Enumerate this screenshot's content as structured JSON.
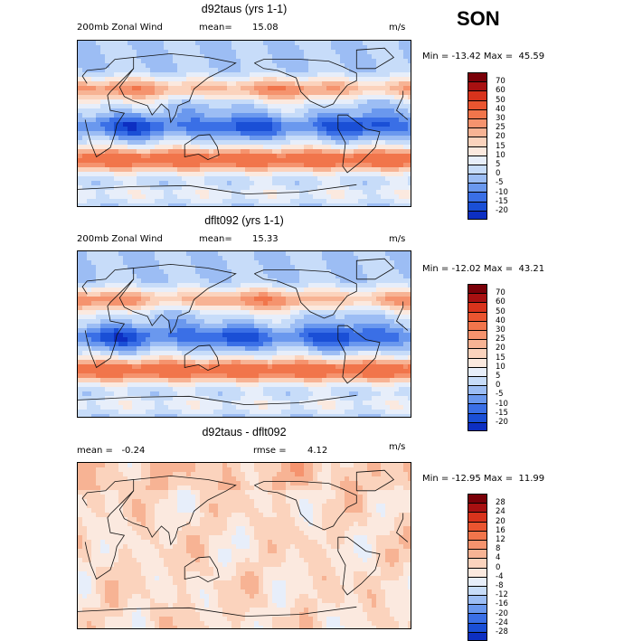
{
  "season": "SON",
  "colors": {
    "neg": [
      "#000080",
      "#0d2fc2",
      "#1a4fd6",
      "#3a6fe6",
      "#6a98ee",
      "#9cbdf4",
      "#c7dcf9",
      "#e7eefa"
    ],
    "pos": [
      "#fbe9df",
      "#fbd3bd",
      "#f7b394",
      "#f5936e",
      "#f1754b",
      "#ea5530",
      "#d8331c",
      "#a81011",
      "#7a0008"
    ]
  },
  "panels": [
    {
      "title": "d92taus (yrs 1-1)",
      "left_label": "200mb Zonal Wind",
      "stat_label": "mean=",
      "stat_value": "15.08",
      "units": "m/s",
      "minmax": "Min = -13.42 Max =  45.59",
      "cbar_labels": [
        "70",
        "60",
        "50",
        "40",
        "30",
        "25",
        "20",
        "15",
        "10",
        "5",
        "0",
        "-5",
        "-10",
        "-15",
        "-20"
      ],
      "kind": "full",
      "variant": 0
    },
    {
      "title": "dflt092 (yrs 1-1)",
      "left_label": "200mb Zonal Wind",
      "stat_label": "mean=",
      "stat_value": "15.33",
      "units": "m/s",
      "minmax": "Min = -12.02 Max =  43.21",
      "cbar_labels": [
        "70",
        "60",
        "50",
        "40",
        "30",
        "25",
        "20",
        "15",
        "10",
        "5",
        "0",
        "-5",
        "-10",
        "-15",
        "-20"
      ],
      "kind": "full",
      "variant": 1
    },
    {
      "title": "d92taus - dflt092",
      "left_label": "mean =   -0.24",
      "stat_label": "rmse =",
      "stat_value": "4.12",
      "units": "m/s",
      "minmax": "Min = -12.95 Max =  11.99",
      "cbar_labels": [
        "28",
        "24",
        "20",
        "16",
        "12",
        "8",
        "4",
        "0",
        "-4",
        "-8",
        "-12",
        "-16",
        "-20",
        "-24",
        "-28"
      ],
      "kind": "diff",
      "variant": 2
    }
  ]
}
